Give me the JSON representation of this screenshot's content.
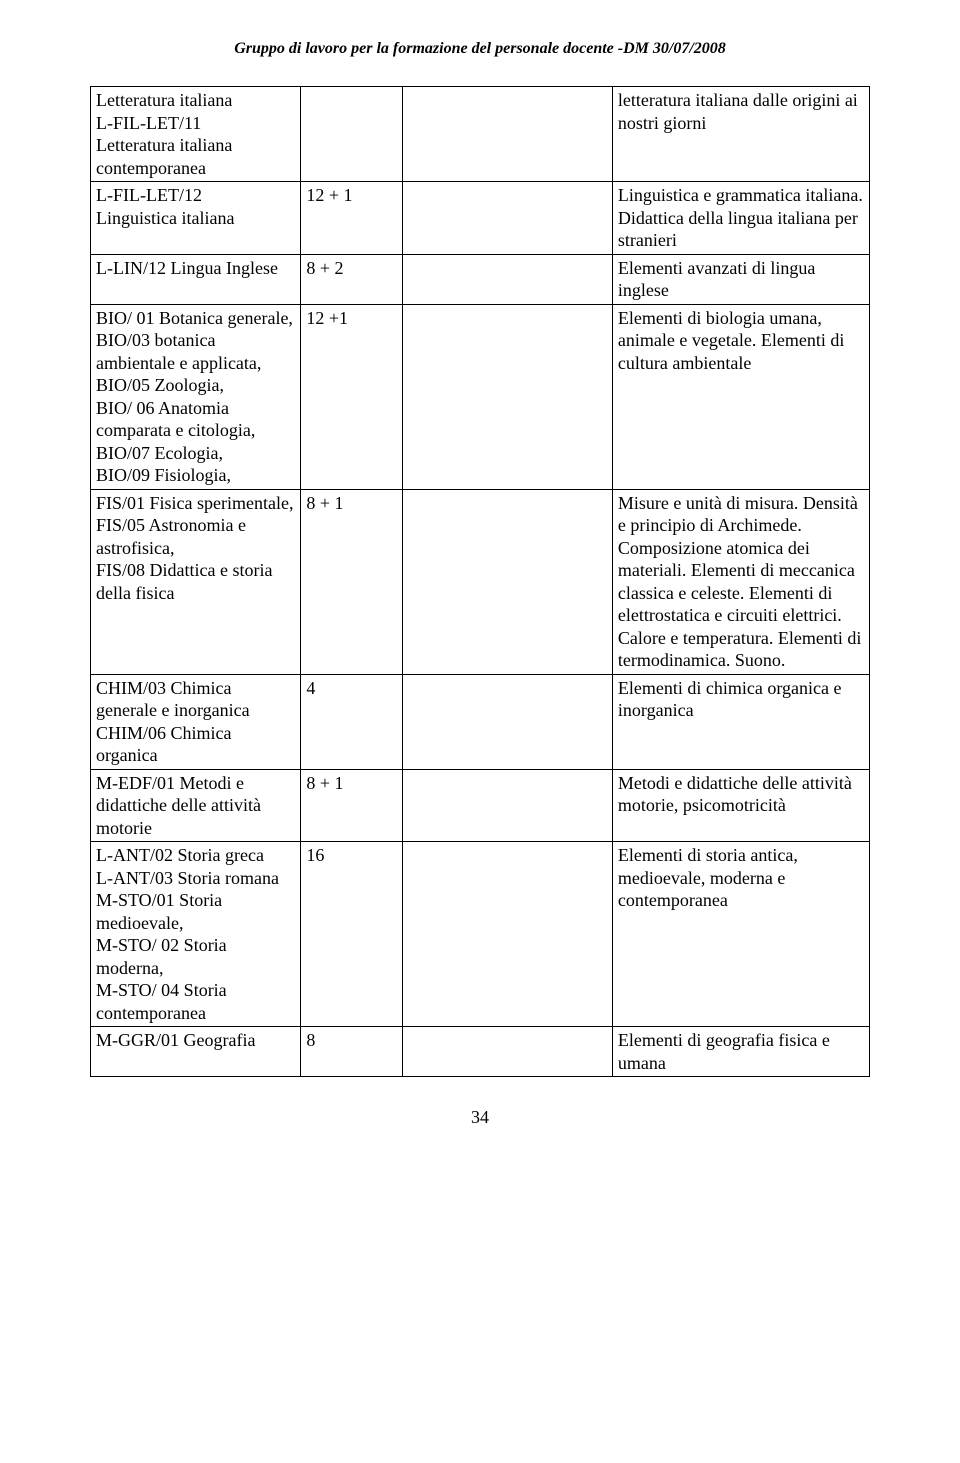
{
  "header": "Gruppo di lavoro per la formazione del personale docente -DM 30/07/2008",
  "page_number": "34",
  "rows": [
    {
      "c1": "Letteratura italiana\nL-FIL-LET/11\nLetteratura italiana contemporanea",
      "c2": "",
      "c3": "",
      "c4": "letteratura italiana dalle origini ai nostri giorni"
    },
    {
      "c1": "L-FIL-LET/12\nLinguistica italiana",
      "c2": "12 + 1",
      "c3": "",
      "c4": "Linguistica e grammatica italiana.\nDidattica della lingua italiana per stranieri"
    },
    {
      "c1": "L-LIN/12 Lingua Inglese",
      "c2": "8 + 2",
      "c3": "",
      "c4": "Elementi avanzati di lingua inglese"
    },
    {
      "c1": "BIO/ 01 Botanica generale, BIO/03 botanica ambientale e applicata,\nBIO/05 Zoologia,\nBIO/ 06 Anatomia comparata e citologia,\nBIO/07 Ecologia,\nBIO/09 Fisiologia,",
      "c2": "12 +1",
      "c3": "",
      "c4": "Elementi di biologia umana, animale e vegetale. Elementi di cultura ambientale"
    },
    {
      "c1": "FIS/01 Fisica sperimentale,\nFIS/05 Astronomia e astrofisica,\nFIS/08 Didattica e storia della fisica",
      "c2": "8 + 1",
      "c3": "",
      "c4": "Misure e unità di misura. Densità e principio di Archimede. Composizione atomica dei materiali. Elementi di meccanica classica e celeste. Elementi di elettrostatica e circuiti elettrici. Calore e temperatura. Elementi di termodinamica. Suono."
    },
    {
      "c1": "CHIM/03 Chimica generale e inorganica CHIM/06 Chimica organica",
      "c2": "4",
      "c3": "",
      "c4": "Elementi di chimica organica e inorganica"
    },
    {
      "c1": "M-EDF/01 Metodi e didattiche delle attività motorie",
      "c2": "8 + 1",
      "c3": "",
      "c4": "Metodi e didattiche delle attività motorie, psicomotricità"
    },
    {
      "c1": "L-ANT/02 Storia greca\nL-ANT/03 Storia romana\nM-STO/01 Storia medioevale,\nM-STO/ 02 Storia moderna,\nM-STO/ 04 Storia contemporanea",
      "c2": "16",
      "c3": "",
      "c4": "Elementi di storia antica, medioevale, moderna e contemporanea"
    },
    {
      "c1": "M-GGR/01 Geografia",
      "c2": "8",
      "c3": "",
      "c4": "Elementi di geografia fisica e umana"
    }
  ]
}
